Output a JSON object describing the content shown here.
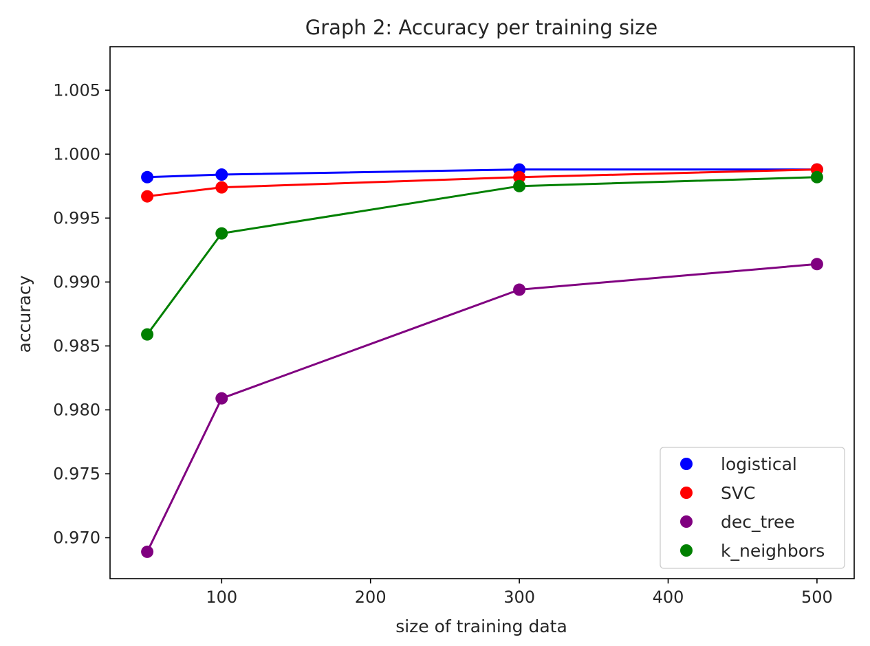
{
  "chart_data": {
    "type": "line",
    "title": "Graph 2: Accuracy per training size",
    "xlabel": "size of training data",
    "ylabel": "accuracy",
    "xlim": [
      25,
      525
    ],
    "ylim": [
      0.9668,
      1.0084
    ],
    "xticks": [
      100,
      200,
      300,
      400,
      500
    ],
    "xtick_labels": [
      "100",
      "200",
      "300",
      "400",
      "500"
    ],
    "yticks": [
      0.97,
      0.975,
      0.98,
      0.985,
      0.99,
      0.995,
      1.0,
      1.005
    ],
    "ytick_labels": [
      "0.970",
      "0.975",
      "0.980",
      "0.985",
      "0.990",
      "0.995",
      "1.000",
      "1.005"
    ],
    "grid": false,
    "legend_position": "lower-right",
    "x": [
      50,
      100,
      300,
      500
    ],
    "series": [
      {
        "name": "logistical",
        "color": "#0000ff",
        "values": [
          0.9982,
          0.9984,
          0.9988,
          0.9988
        ]
      },
      {
        "name": "SVC",
        "color": "#ff0000",
        "values": [
          0.9967,
          0.9974,
          0.9982,
          0.9988
        ]
      },
      {
        "name": "dec_tree",
        "color": "#800080",
        "values": [
          0.9689,
          0.9809,
          0.9894,
          0.9914
        ]
      },
      {
        "name": "k_neighbors",
        "color": "#008000",
        "values": [
          0.9859,
          0.9938,
          0.9975,
          0.9982
        ]
      }
    ]
  }
}
